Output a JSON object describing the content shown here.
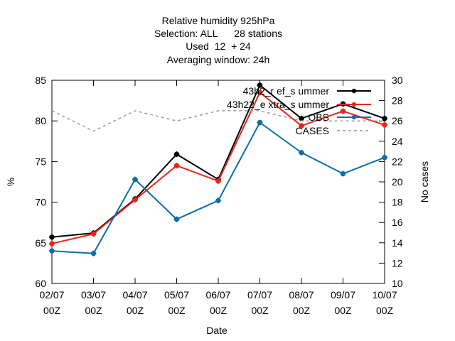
{
  "title_lines": [
    "Relative humidity 925hPa",
    "Selection: ALL      28 stations",
    "Used  12  + 24",
    "Averaging window: 24h"
  ],
  "chart_data": {
    "type": "line",
    "xlabel": "Date",
    "ylabel": "%",
    "y2label": "No cases",
    "ylim": [
      60,
      85
    ],
    "y2lim": [
      10,
      30
    ],
    "yticks": [
      60,
      65,
      70,
      75,
      80,
      85
    ],
    "y2ticks": [
      10,
      12,
      14,
      16,
      18,
      20,
      22,
      24,
      26,
      28,
      30
    ],
    "grid": false,
    "legend_position": "top-right",
    "categories": [
      [
        "02/07",
        "00Z"
      ],
      [
        "03/07",
        "00Z"
      ],
      [
        "04/07",
        "00Z"
      ],
      [
        "05/07",
        "00Z"
      ],
      [
        "06/07",
        "00Z"
      ],
      [
        "07/07",
        "00Z"
      ],
      [
        "08/07",
        "00Z"
      ],
      [
        "09/07",
        "00Z"
      ],
      [
        "10/07",
        "00Z"
      ]
    ],
    "series": [
      {
        "name": "43h2_ref_summer",
        "legend_text": "43h2_r ef_s ummer",
        "axis": "left",
        "color": "#000000",
        "values": [
          65.7,
          66.2,
          70.4,
          75.9,
          72.8,
          84.4,
          80.3,
          82.1,
          80.3
        ]
      },
      {
        "name": "43h22_extra_summer",
        "legend_text": "43h22_e xtra_s ummer",
        "axis": "left",
        "color": "#e8261a",
        "values": [
          64.9,
          66.1,
          70.3,
          74.5,
          72.6,
          83.5,
          79.4,
          81.2,
          79.5
        ]
      },
      {
        "name": "OBS",
        "legend_text": "OBS",
        "axis": "left",
        "color": "#0b6ea8",
        "values": [
          64.0,
          63.7,
          72.8,
          67.9,
          70.2,
          79.8,
          76.1,
          73.5,
          75.5
        ]
      },
      {
        "name": "CASES",
        "legend_text": "CASES",
        "axis": "right",
        "color": "#9a9a9a",
        "dashed": true,
        "values": [
          27,
          25,
          27,
          26,
          27,
          27,
          26,
          26,
          26
        ]
      }
    ]
  }
}
